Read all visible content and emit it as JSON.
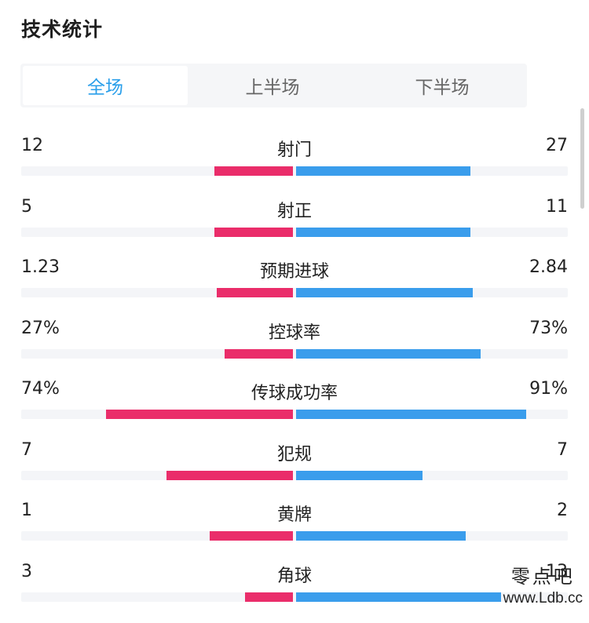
{
  "title": "技术统计",
  "tabs": [
    {
      "label": "全场",
      "active": true
    },
    {
      "label": "上半场",
      "active": false
    },
    {
      "label": "下半场",
      "active": false
    }
  ],
  "colors": {
    "home": "#ea2d6a",
    "away": "#3a9dec",
    "active_tab": "#2a9fea"
  },
  "stats": [
    {
      "label": "射门",
      "home": "12",
      "away": "27",
      "home_share": 0.31,
      "away_share": 0.69
    },
    {
      "label": "射正",
      "home": "5",
      "away": "11",
      "home_share": 0.31,
      "away_share": 0.69
    },
    {
      "label": "预期进球",
      "home": "1.23",
      "away": "2.84",
      "home_share": 0.3,
      "away_share": 0.7
    },
    {
      "label": "控球率",
      "home": "27%",
      "away": "73%",
      "home_share": 0.27,
      "away_share": 0.73
    },
    {
      "label": "传球成功率",
      "home": "74%",
      "away": "91%",
      "home_share": 0.74,
      "away_share": 0.91
    },
    {
      "label": "犯规",
      "home": "7",
      "away": "7",
      "home_share": 0.5,
      "away_share": 0.5
    },
    {
      "label": "黄牌",
      "home": "1",
      "away": "2",
      "home_share": 0.33,
      "away_share": 0.67
    },
    {
      "label": "角球",
      "home": "3",
      "away": "13",
      "home_share": 0.19,
      "away_share": 0.81
    }
  ],
  "watermark": {
    "text": "零点吧",
    "url": "www.Ldb.cc"
  }
}
